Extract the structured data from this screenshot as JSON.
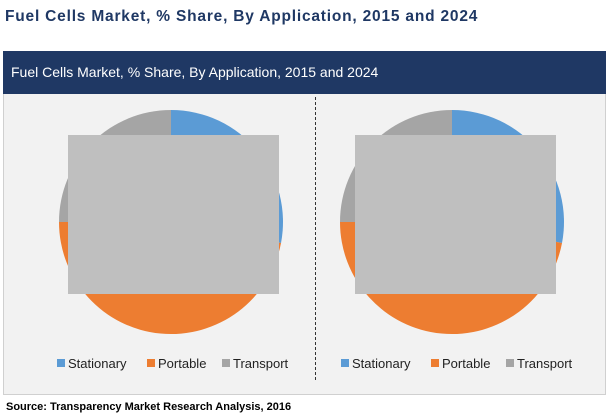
{
  "page": {
    "title": "Fuel Cells Market, % Share, By Application, 2015 and 2024",
    "source": "Source: Transparency Market Research Analysis, 2016"
  },
  "panel": {
    "header": "Fuel Cells Market, % Share, By Application, 2015 and 2024",
    "background_color": "#f2f2f2",
    "header_color": "#1f3864"
  },
  "chart_data": [
    {
      "type": "pie",
      "categories": [
        "Stationary",
        "Portable",
        "Transport"
      ],
      "values": [
        28,
        47,
        25
      ],
      "colors": [
        "#5b9bd5",
        "#ed7d31",
        "#a5a5a5"
      ],
      "legend_position": "bottom",
      "overlay_color": "#bfbfbf"
    },
    {
      "type": "pie",
      "categories": [
        "Stationary",
        "Portable",
        "Transport"
      ],
      "values": [
        28,
        47,
        25
      ],
      "colors": [
        "#5b9bd5",
        "#ed7d31",
        "#a5a5a5"
      ],
      "legend_position": "bottom",
      "overlay_color": "#bfbfbf"
    }
  ]
}
